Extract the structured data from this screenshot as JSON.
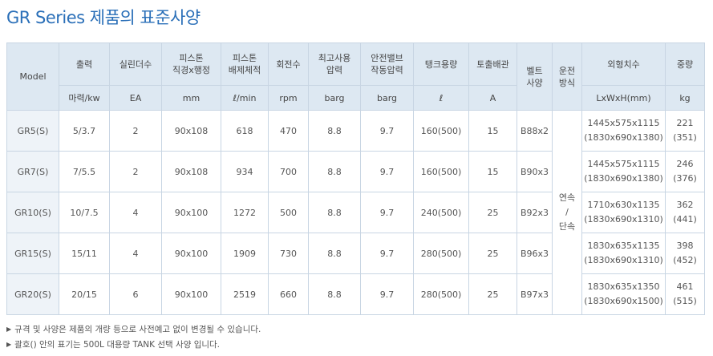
{
  "page_title": "GR Series 제품의 표준사양",
  "table": {
    "headers": {
      "model": "Model",
      "output": "출력",
      "cylinders": "실린더수",
      "piston_dim": [
        "피스톤",
        "직경x행정"
      ],
      "piston_disp": [
        "피스톤",
        "배제체적"
      ],
      "rpm": "회전수",
      "max_pressure": [
        "최고사용",
        "압력"
      ],
      "safety_valve": [
        "안전밸브",
        "작동압력"
      ],
      "tank": "탱크용량",
      "discharge": "토출배관",
      "belt": [
        "벨트",
        "사양"
      ],
      "operation": [
        "운전",
        "방식"
      ],
      "dimensions": "외형치수",
      "weight": "중량"
    },
    "units": {
      "output": "마력/kw",
      "cylinders": "EA",
      "piston_dim": "mm",
      "piston_disp": "ℓ/min",
      "rpm": "rpm",
      "max_pressure": "barg",
      "safety_valve": "barg",
      "tank": "ℓ",
      "discharge": "A",
      "dimensions": "LxWxH(mm)",
      "weight": "kg"
    },
    "operation_mode": [
      "연속",
      "/",
      "단속"
    ],
    "rows": [
      {
        "model": "GR5(S)",
        "output": "5/3.7",
        "cylinders": "2",
        "piston_dim": "90x108",
        "piston_disp": "618",
        "rpm": "470",
        "max_pressure": "8.8",
        "safety_valve": "9.7",
        "tank": "160(500)",
        "discharge": "15",
        "belt": "B88x2",
        "dim": "1445x575x1115",
        "dim_tank": "(1830x690x1380)",
        "weight": "221",
        "weight_tank": "(351)"
      },
      {
        "model": "GR7(S)",
        "output": "7/5.5",
        "cylinders": "2",
        "piston_dim": "90x108",
        "piston_disp": "934",
        "rpm": "700",
        "max_pressure": "8.8",
        "safety_valve": "9.7",
        "tank": "160(500)",
        "discharge": "15",
        "belt": "B90x3",
        "dim": "1445x575x1115",
        "dim_tank": "(1830x690x1380)",
        "weight": "246",
        "weight_tank": "(376)"
      },
      {
        "model": "GR10(S)",
        "output": "10/7.5",
        "cylinders": "4",
        "piston_dim": "90x100",
        "piston_disp": "1272",
        "rpm": "500",
        "max_pressure": "8.8",
        "safety_valve": "9.7",
        "tank": "240(500)",
        "discharge": "25",
        "belt": "B92x3",
        "dim": "1710x630x1135",
        "dim_tank": "(1830x690x1310)",
        "weight": "362",
        "weight_tank": "(441)"
      },
      {
        "model": "GR15(S)",
        "output": "15/11",
        "cylinders": "4",
        "piston_dim": "90x100",
        "piston_disp": "1909",
        "rpm": "730",
        "max_pressure": "8.8",
        "safety_valve": "9.7",
        "tank": "280(500)",
        "discharge": "25",
        "belt": "B96x3",
        "dim": "1830x635x1135",
        "dim_tank": "(1830x690x1310)",
        "weight": "398",
        "weight_tank": "(452)"
      },
      {
        "model": "GR20(S)",
        "output": "20/15",
        "cylinders": "6",
        "piston_dim": "90x100",
        "piston_disp": "2519",
        "rpm": "660",
        "max_pressure": "8.8",
        "safety_valve": "9.7",
        "tank": "280(500)",
        "discharge": "25",
        "belt": "B97x3",
        "dim": "1830x635x1350",
        "dim_tank": "(1830x690x1500)",
        "weight": "461",
        "weight_tank": "(515)"
      }
    ]
  },
  "notes": [
    "규격 및 사양은 제품의 개량 등으로 사전예고 없이 변경될 수 있습니다.",
    "괄호() 안의 표기는 500L 대용량 TANK 선택 사양 입니다."
  ],
  "colors": {
    "title": "#2a6fb8",
    "header_bg": "#dde8f2",
    "border": "#c8d5e3",
    "text": "#555555"
  }
}
